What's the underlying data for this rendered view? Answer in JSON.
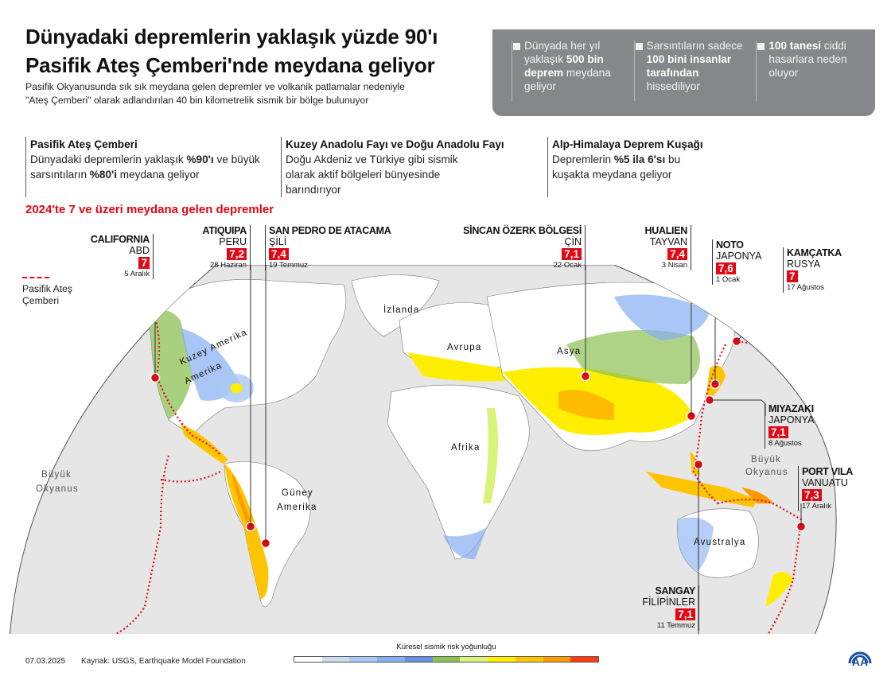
{
  "header": {
    "title": "Dünyadaki depremlerin yaklaşık yüzde 90'ı Pasifik Ateş Çemberi'nde meydana geliyor",
    "subtitle": "Pasifik Okyanusunda sık sık meydana gelen depremler ve volkanik patlamalar nedeniyle \"Ateş Çemberi\" olarak adlandırılan 40 bin kilometrelik sismik bir bölge bulunuyor"
  },
  "stats": [
    {
      "pre": "Dünyada her yıl yaklaşık ",
      "bold": "500 bin deprem",
      "post": " meydana geliyor"
    },
    {
      "pre": "Sarsıntıların sadece ",
      "bold": "100 bini insanlar tarafından",
      "post": " hissediliyor"
    },
    {
      "pre": "",
      "bold": "100 tanesi",
      "post": " ciddi hasarlara neden oluyor"
    }
  ],
  "facts": [
    {
      "heading": "Pasifik Ateş Çemberi",
      "pre": "Dünyadaki depremlerin yaklaşık ",
      "bold1": "%90'ı",
      "mid": " ve büyük sarsıntıların ",
      "bold2": "%80'i",
      "post": " meydana geliyor"
    },
    {
      "heading": "Kuzey Anadolu Fayı ve Doğu Anadolu Fayı",
      "pre": "Doğu Akdeniz ve Türkiye gibi sismik olarak aktif bölgeleri bünyesinde barındırıyor",
      "bold1": "",
      "mid": "",
      "bold2": "",
      "post": ""
    },
    {
      "heading": "Alp-Himalaya Deprem Kuşağı",
      "pre": "Depremlerin ",
      "bold1": "%5 ila 6'sı",
      "mid": " bu kuşakta meydana geliyor",
      "bold2": "",
      "post": ""
    }
  ],
  "quakes_heading": "2024'te 7 ve üzeri meydana gelen depremler",
  "legend": {
    "ring_label": "Pasifik Ateş Çemberi",
    "ring_color": "#e30613"
  },
  "earthquakes": [
    {
      "place": "CALIFORNIA",
      "country": "ABD",
      "magnitude": "7",
      "date": "5 Aralık"
    },
    {
      "place": "ATIQUIPA",
      "country": "PERU",
      "magnitude": "7,2",
      "date": "28 Haziran"
    },
    {
      "place": "SAN PEDRO DE ATACAMA",
      "country": "ŞİLİ",
      "magnitude": "7,4",
      "date": "19 Temmuz"
    },
    {
      "place": "SİNCAN ÖZERK BÖLGESİ",
      "country": "ÇİN",
      "magnitude": "7,1",
      "date": "22 Ocak"
    },
    {
      "place": "HUALIEN",
      "country": "TAYVAN",
      "magnitude": "7,4",
      "date": "3 Nisan"
    },
    {
      "place": "NOTO",
      "country": "JAPONYA",
      "magnitude": "7,6",
      "date": "1 Ocak"
    },
    {
      "place": "KAMÇATKA",
      "country": "RUSYA",
      "magnitude": "7",
      "date": "17 Ağustos"
    },
    {
      "place": "MIYAZAKI",
      "country": "JAPONYA",
      "magnitude": "7,1",
      "date": "8 Ağustos"
    },
    {
      "place": "PORT VILA",
      "country": "VANUATU",
      "magnitude": "7,3",
      "date": "17 Aralık"
    },
    {
      "place": "SANGAY",
      "country": "FİLİPİNLER",
      "magnitude": "7,1",
      "date": "11 Temmuz"
    }
  ],
  "map_labels": {
    "north_america": "Kuzey Amerika",
    "south_america": "Güney Amerika",
    "iceland": "İzlanda",
    "europe": "Avrupa",
    "asia": "Asya",
    "africa": "Afrika",
    "australia": "Avustralya",
    "pacific_west": "Büyük Okyanus",
    "pacific_east": "Büyük Okyanus"
  },
  "scale": {
    "title": "Küresel sismik risk yoğunluğu",
    "colors": [
      "#ffffff",
      "#c9dcf0",
      "#a9c8f5",
      "#85aef2",
      "#6a8fe8",
      "#8cc152",
      "#d9f27a",
      "#ffee00",
      "#ffc400",
      "#ff9900",
      "#ff3b0f"
    ]
  },
  "footer": {
    "date": "07.03.2025",
    "source": "Kaynak: USGS, Earthquake Model Foundation"
  },
  "logo": {
    "text": "AA",
    "color": "#1a4fa3"
  }
}
